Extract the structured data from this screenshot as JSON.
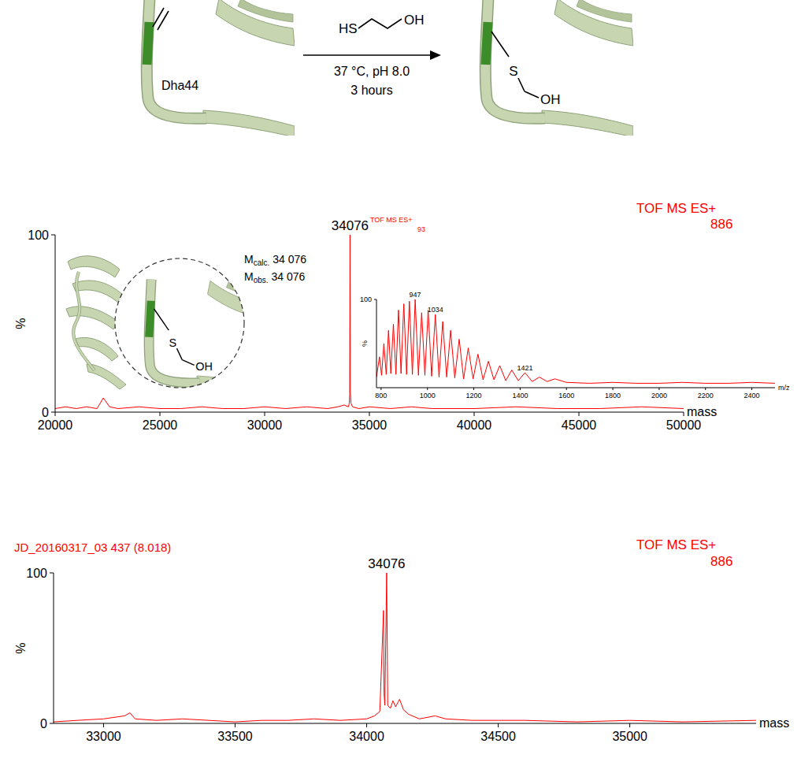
{
  "scheme": {
    "label": "Dha44",
    "reagent": {
      "left": "HS",
      "right": "OH"
    },
    "conditions": [
      "37 °C, pH 8.0",
      "3 hours"
    ],
    "product": {
      "atom": "S",
      "end": "OH"
    }
  },
  "chart_data": [
    {
      "type": "line",
      "header": [
        "TOF MS ES+",
        "886"
      ],
      "x_label": "mass",
      "y_label": "%",
      "color": "#ff0000",
      "xlim": [
        20000,
        50000
      ],
      "ylim": [
        0,
        100
      ],
      "xticks": [
        20000,
        25000,
        30000,
        35000,
        40000,
        45000,
        50000
      ],
      "yticks": [
        0,
        100
      ],
      "x": [
        20000,
        20500,
        21000,
        21500,
        22000,
        22300,
        22600,
        23000,
        24000,
        25000,
        26000,
        27000,
        28000,
        29000,
        30000,
        31000,
        32000,
        33000,
        33500,
        33800,
        34000,
        34040,
        34060,
        34076,
        34090,
        34120,
        34200,
        34500,
        35000,
        36000,
        37000,
        38000,
        40000,
        42000,
        44000,
        46000,
        48000,
        50000
      ],
      "values": [
        2,
        3,
        2,
        3,
        2,
        8,
        3,
        2,
        3,
        2,
        2,
        3,
        2,
        2,
        3,
        2,
        3,
        2,
        3,
        4,
        3,
        5,
        10,
        100,
        12,
        5,
        3,
        2,
        3,
        2,
        3,
        2,
        2,
        3,
        2,
        2,
        3,
        2
      ],
      "annotations": [
        {
          "text": "34076",
          "x": 34076,
          "y": 100
        }
      ],
      "mass_labels": [
        {
          "symbol": "M",
          "subscript": "calc.",
          "value": "34 076"
        },
        {
          "symbol": "M",
          "subscript": "obs.",
          "value": "34 076"
        }
      ],
      "inset_structure": {
        "atom": "S",
        "end": "OH"
      }
    },
    {
      "type": "line",
      "header": [
        "TOF MS ES+",
        "93"
      ],
      "x_label": "m/z",
      "y_label": "%",
      "color": "#ff0000",
      "xlim": [
        780,
        2500
      ],
      "ylim": [
        0,
        100
      ],
      "xticks": [
        800,
        1000,
        1200,
        1400,
        1600,
        1800,
        2000,
        2200,
        2400
      ],
      "yticks": [
        100
      ],
      "x": [
        780,
        793,
        802,
        812,
        822,
        832,
        842,
        853,
        864,
        875,
        886,
        898,
        910,
        922,
        935,
        947,
        961,
        975,
        989,
        1003,
        1018,
        1034,
        1050,
        1066,
        1083,
        1100,
        1118,
        1137,
        1156,
        1176,
        1197,
        1218,
        1240,
        1263,
        1287,
        1312,
        1338,
        1364,
        1392,
        1421,
        1452,
        1483,
        1516,
        1550,
        1600,
        1700,
        1800,
        1900,
        2000,
        2100,
        2200,
        2300,
        2400,
        2500
      ],
      "values": [
        12,
        35,
        14,
        50,
        15,
        65,
        16,
        72,
        15,
        88,
        16,
        95,
        15,
        98,
        15,
        100,
        14,
        85,
        14,
        88,
        13,
        83,
        12,
        75,
        12,
        65,
        11,
        55,
        10,
        45,
        10,
        38,
        9,
        30,
        9,
        25,
        8,
        20,
        8,
        17,
        7,
        12,
        7,
        10,
        6,
        5,
        6,
        5,
        5,
        6,
        5,
        5,
        6,
        5
      ],
      "annotations": [
        {
          "text": "947",
          "x": 947,
          "y": 100
        },
        {
          "text": "1034",
          "x": 1034,
          "y": 83
        },
        {
          "text": "1421",
          "x": 1421,
          "y": 17
        }
      ]
    },
    {
      "type": "line",
      "title": "JD_20160317_03  437 (8.018)",
      "header": [
        "TOF MS ES+",
        "886"
      ],
      "x_label": "mass",
      "y_label": "%",
      "color": "#ff0000",
      "xlim": [
        32810,
        35480
      ],
      "ylim": [
        0,
        100
      ],
      "xticks": [
        33000,
        33500,
        34000,
        34500,
        35000
      ],
      "yticks": [
        0,
        100
      ],
      "x": [
        32810,
        32900,
        33000,
        33080,
        33100,
        33120,
        33200,
        33300,
        33400,
        33500,
        33600,
        33700,
        33800,
        33900,
        34000,
        34030,
        34050,
        34064,
        34066,
        34069,
        34076,
        34080,
        34090,
        34100,
        34110,
        34125,
        34140,
        34160,
        34200,
        34260,
        34300,
        34400,
        34500,
        34600,
        34800,
        35000,
        35200,
        35480
      ],
      "values": [
        1,
        2,
        3,
        5,
        7,
        3,
        2,
        3,
        2,
        1,
        2,
        2,
        3,
        2,
        3,
        5,
        8,
        75,
        20,
        12,
        100,
        12,
        10,
        15,
        11,
        16,
        9,
        6,
        3,
        5,
        3,
        2,
        2,
        2,
        1,
        2,
        1,
        2
      ],
      "annotations": [
        {
          "text": "34076",
          "x": 34076,
          "y": 100
        }
      ]
    }
  ]
}
